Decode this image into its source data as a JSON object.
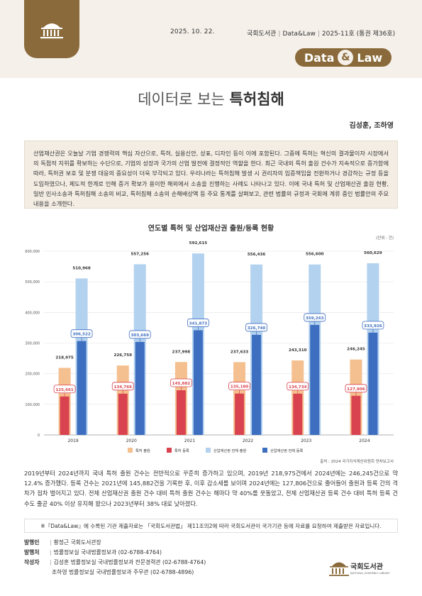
{
  "header": {
    "date": "2025. 10. 22.",
    "publisher": "국회도서관",
    "series": "Data&Law",
    "issue": "2025-11호 (통권 제36호)",
    "badge_left": "Data",
    "badge_amp": "&",
    "badge_right": "Law",
    "icon": "national-assembly-dome-icon"
  },
  "title": {
    "prefix": "데이터로 보는 ",
    "emphasis": "특허침해"
  },
  "authors": "김성훈, 조하영",
  "summary": "산업재산권은 오늘날 기업 경쟁력의 핵심 자산으로, 특허, 실용신안, 상표, 디자인 등이 이에 포함된다. 그중에 특허는 혁신의 결과물이자 시장에서의 독점적 지위를 확보하는 수단으로, 기업의 성장과 국가의 산업 발전에 결정적인 역할을 한다. 최근 국내외 특허 출원 건수가 지속적으로 증가함에 따라, 특허권 보호 및 분쟁 대응의 중요성이 더욱 부각되고 있다. 우리나라는 특허침해 발생 시 권리자의 입증책임을 전환하거나 경감하는 규정 등을 도입하였으나, 제도적 한계로 인해 증거 확보가 용이한 해외에서 소송을 진행하는 사례도 나타나고 있다. 이에 국내 특허 및 산업재산권 출원 현황, 일반 민사소송과 특허침해 소송의 비교, 특허침해 소송의 손해배상액 등 주요 통계를 살펴보고, 관련 법률의 규정과 국회에 계류 중인 법률안의 주요 내용을 소개한다.",
  "chart_data": {
    "type": "bar",
    "title": "연도별 특허 및 산업재산권 출원/등록 현황",
    "unit": "(단위 : 건)",
    "categories": [
      "2019",
      "2020",
      "2021",
      "2022",
      "2023",
      "2024"
    ],
    "ylim": [
      0,
      600000
    ],
    "yticks": [
      "0",
      "100,000",
      "200,000",
      "300,000",
      "400,000",
      "500,000",
      "600,000"
    ],
    "grid": true,
    "legend_position": "bottom",
    "series": [
      {
        "name": "특허 출원",
        "color": "#f5c08f",
        "values": [
          218975,
          226759,
          237998,
          237633,
          243310,
          246245
        ],
        "labels": [
          "218,975",
          "226,759",
          "237,998",
          "237,633",
          "243,310",
          "246,245"
        ],
        "label_style": "plain"
      },
      {
        "name": "특허 등록",
        "color": "#d9434f",
        "values": [
          125661,
          134766,
          145882,
          135180,
          134734,
          127806
        ],
        "labels": [
          "125,661",
          "134,766",
          "145,882",
          "135,180",
          "134,734",
          "127,806"
        ],
        "label_style": "boxed-red"
      },
      {
        "name": "산업재산권 전체 출원",
        "color": "#b3d2ef",
        "values": [
          510968,
          557256,
          592615,
          556436,
          556600,
          560629
        ],
        "labels": [
          "510,968",
          "557,256",
          "592,615",
          "556,436",
          "556,600",
          "560,629"
        ],
        "label_style": "plain"
      },
      {
        "name": "산업재산권 전체 등록",
        "color": "#3d6ec0",
        "values": [
          306522,
          303669,
          341873,
          326740,
          359263,
          333926
        ],
        "labels": [
          "306,522",
          "303,669",
          "341,873",
          "326,740",
          "359,263",
          "333,926"
        ],
        "label_style": "boxed-blue"
      }
    ],
    "source": "출처 : 2024 국가지식재산위원회 연차보고서"
  },
  "analysis": "2019년부터 2024년까지 국내 특허 출원 건수는 전반적으로 꾸준히 증가하고 있으며, 2019년 218,975건에서 2024년에는 246,245건으로 약 12.4% 증가했다. 등록 건수는 2021년에 145,882건을 기록한 후, 이후 감소세를 보이며 2024년에는 127,806건으로 줄어들어 출원과 등록 간의 격차가 점차 벌어지고 있다. 전체 산업재산권 출원 건수 대비 특허 출원 건수는 해마다 약 40%를 웃돌았고, 전체 산업재산권 등록 건수 대비 특허 등록 건수도 줄곧 40% 이상 유지해 왔으나 2023년부터 38% 대로 낮아졌다.",
  "note": "※『Data&Law』에 수록된 기관 제출자료는 「국회도서관법」 제11조의2에 따라 국회도서관이 국가기관 등에 자료를 요청하여 제출받은 자료입니다.",
  "credits": {
    "issuer_label": "발행인",
    "issuer": "황정근 국회도서관장",
    "office_label": "발행처",
    "office": "법률정보실 국내법률정보과 (02-6788-4764)",
    "author_label": "작성자",
    "author1": "김성훈 법률정보실 국내법률정보과 전문경력관 (02-6788-4764)",
    "author2": "조하영 법률정보실 국내법률정보과 주무관 (02-6788-4896)"
  },
  "footer_logo": {
    "name": "국회도서관",
    "sub": "NATIONAL ASSEMBLY LIBRARY",
    "icon": "national-assembly-library-logo-icon"
  }
}
